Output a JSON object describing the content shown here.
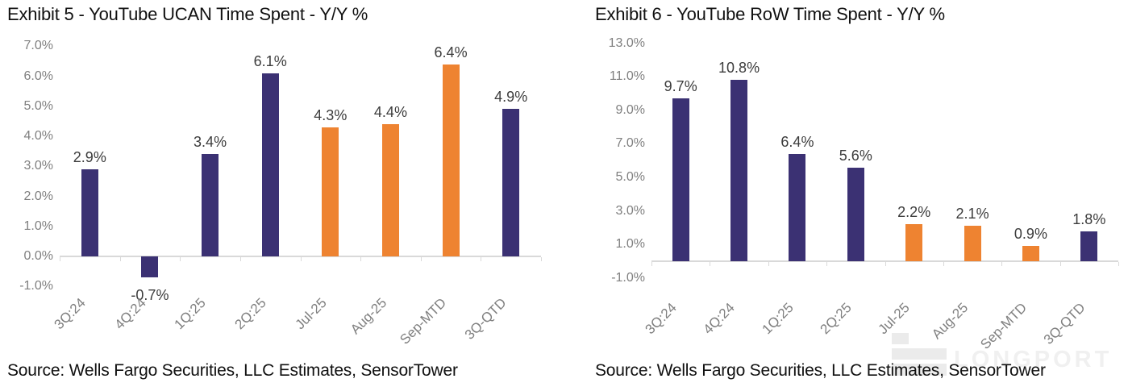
{
  "watermark": {
    "text": "LONGPORT",
    "logo_icon": "longport-blocks-logo",
    "color": "#f0f0f0"
  },
  "colors": {
    "navy": "#3b3173",
    "orange": "#ee8331",
    "axis_line": "#d9d9d9",
    "tick_label": "#7f7f7f",
    "value_label": "#3c3c3c",
    "title_text": "#111111"
  },
  "chart_data": [
    {
      "type": "bar",
      "title": "Exhibit 5 - YouTube UCAN Time Spent - Y/Y %",
      "source": "Source: Wells Fargo Securities, LLC Estimates, SensorTower",
      "categories": [
        "3Q:24",
        "4Q:24",
        "1Q:25",
        "2Q:25",
        "Jul-25",
        "Aug-25",
        "Sep-MTD",
        "3Q-QTD"
      ],
      "values": [
        2.9,
        -0.7,
        3.4,
        6.1,
        4.3,
        4.4,
        6.4,
        4.9
      ],
      "data_labels": [
        "2.9%",
        "-0.7%",
        "3.4%",
        "6.1%",
        "4.3%",
        "4.4%",
        "6.4%",
        "4.9%"
      ],
      "bar_colors": [
        "navy",
        "navy",
        "navy",
        "navy",
        "orange",
        "orange",
        "orange",
        "navy"
      ],
      "y_ticks": [
        "7.0%",
        "6.0%",
        "5.0%",
        "4.0%",
        "3.0%",
        "2.0%",
        "1.0%",
        "0.0%",
        "-1.0%"
      ],
      "ylim": [
        -1.0,
        7.0
      ],
      "y_tick_step": 1.0,
      "xlabel": "",
      "ylabel": "",
      "grid": false,
      "legend": false
    },
    {
      "type": "bar",
      "title": "Exhibit 6 - YouTube RoW Time Spent - Y/Y %",
      "source": "Source: Wells Fargo Securities, LLC Estimates, SensorTower",
      "categories": [
        "3Q:24",
        "4Q:24",
        "1Q:25",
        "2Q:25",
        "Jul-25",
        "Aug-25",
        "Sep-MTD",
        "3Q-QTD"
      ],
      "values": [
        9.7,
        10.8,
        6.4,
        5.6,
        2.2,
        2.1,
        0.9,
        1.8
      ],
      "data_labels": [
        "9.7%",
        "10.8%",
        "6.4%",
        "5.6%",
        "2.2%",
        "2.1%",
        "0.9%",
        "1.8%"
      ],
      "bar_colors": [
        "navy",
        "navy",
        "navy",
        "navy",
        "orange",
        "orange",
        "orange",
        "navy"
      ],
      "y_ticks": [
        "13.0%",
        "11.0%",
        "9.0%",
        "7.0%",
        "5.0%",
        "3.0%",
        "1.0%",
        "-1.0%"
      ],
      "ylim": [
        -1.0,
        13.0
      ],
      "y_tick_step": 2.0,
      "xlabel": "",
      "ylabel": "",
      "grid": false,
      "legend": false
    }
  ]
}
